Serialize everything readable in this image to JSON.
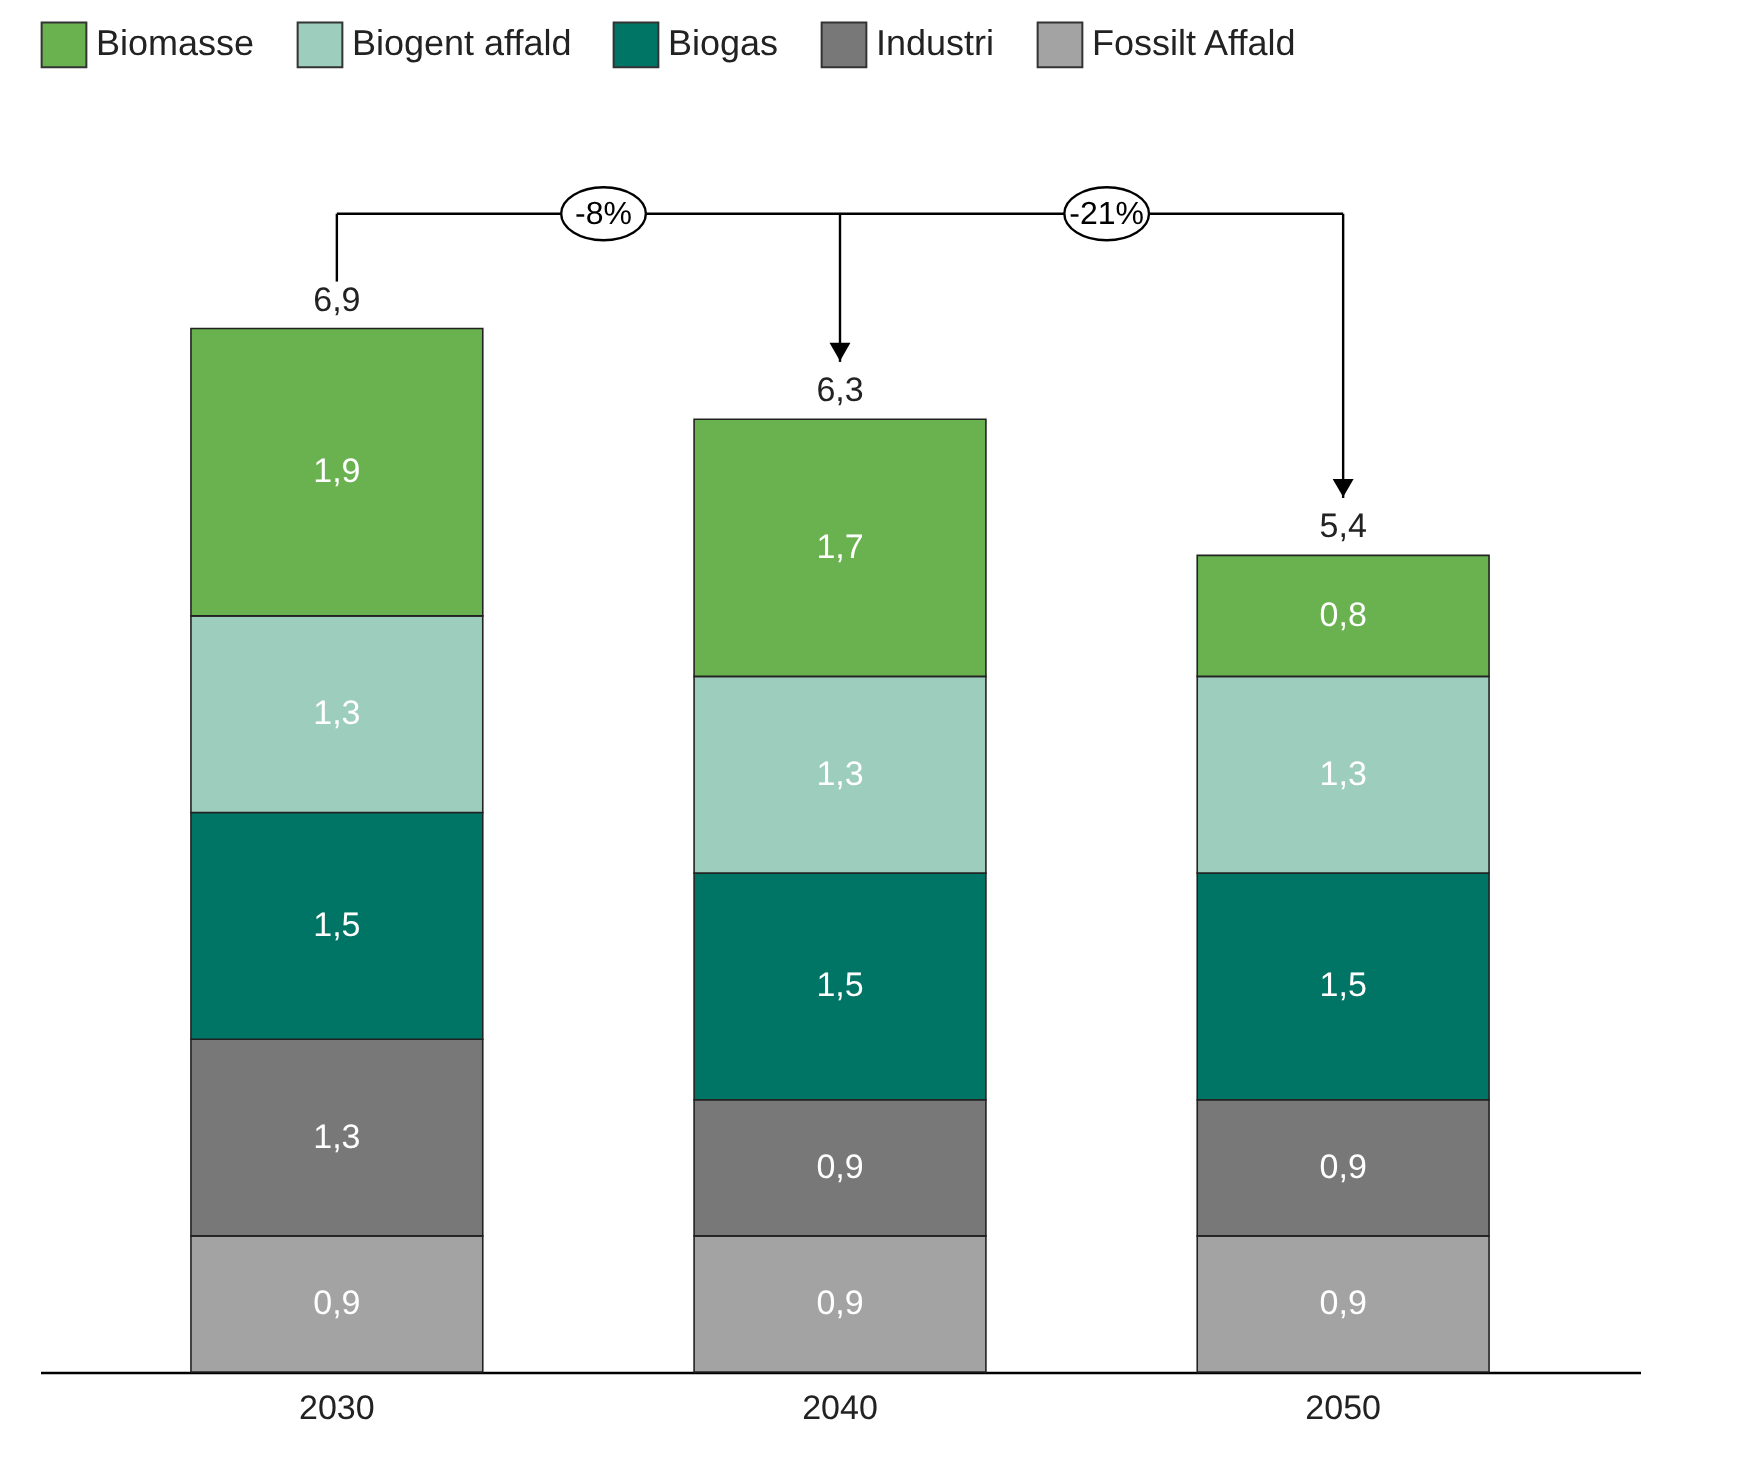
{
  "chart_data": {
    "type": "bar",
    "stacked": true,
    "legend": "top left",
    "categories": [
      "2030",
      "2040",
      "2050"
    ],
    "series": [
      {
        "name": "Fossilt Affald",
        "color": "#a3a3a3",
        "values": [
          0.9,
          0.9,
          0.9
        ],
        "value_labels": [
          "0,9",
          "0,9",
          "0,9"
        ]
      },
      {
        "name": "Industri",
        "color": "#787878",
        "values": [
          1.3,
          0.9,
          0.9
        ],
        "value_labels": [
          "1,3",
          "0,9",
          "0,9"
        ]
      },
      {
        "name": "Biogas",
        "color": "#007565",
        "values": [
          1.5,
          1.5,
          1.5
        ],
        "value_labels": [
          "1,5",
          "1,5",
          "1,5"
        ]
      },
      {
        "name": "Biogent affald",
        "color": "#9dcdbd",
        "values": [
          1.3,
          1.3,
          1.3
        ],
        "value_labels": [
          "1,3",
          "1,3",
          "1,3"
        ]
      },
      {
        "name": "Biomasse",
        "color": "#6ab24f",
        "values": [
          1.9,
          1.7,
          0.8
        ],
        "value_labels": [
          "1,9",
          "1,7",
          "0,8"
        ]
      }
    ],
    "totals": [
      "6,9",
      "6,3",
      "5,4"
    ],
    "annotations": [
      "-8%",
      "-21%"
    ]
  }
}
